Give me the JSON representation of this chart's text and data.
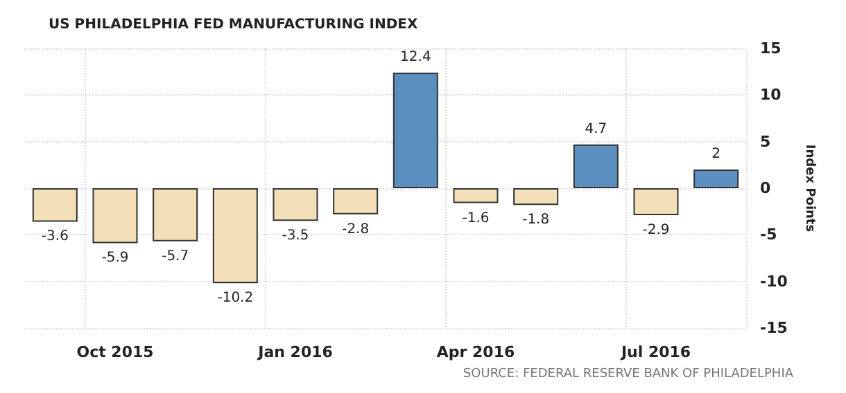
{
  "chart_data": {
    "type": "bar",
    "title": "US PHILADELPHIA FED MANUFACTURING INDEX",
    "ylabel": "Index Points",
    "annotations": [
      "SOURCE: FEDERAL RESERVE BANK OF PHILADELPHIA"
    ],
    "categories": [
      null,
      "Oct 2015",
      null,
      null,
      "Jan 2016",
      null,
      null,
      "Apr 2016",
      null,
      null,
      "Jul 2016",
      null
    ],
    "values": [
      -3.6,
      -5.9,
      -5.7,
      -10.2,
      -3.5,
      -2.8,
      12.4,
      -1.6,
      -1.8,
      4.7,
      -2.9,
      2
    ],
    "colors": [
      "#f3dfb8",
      "#f3dfb8",
      "#f3dfb8",
      "#f3dfb8",
      "#f3dfb8",
      "#f3dfb8",
      "#5a8fc0",
      "#f3dfb8",
      "#f3dfb8",
      "#5a8fc0",
      "#f3dfb8",
      "#5a8fc0"
    ],
    "ylim": [
      -15,
      15
    ],
    "yticks": [
      -15,
      -10,
      -5,
      0,
      5,
      10,
      15
    ],
    "data_labels": true,
    "grid": true
  }
}
